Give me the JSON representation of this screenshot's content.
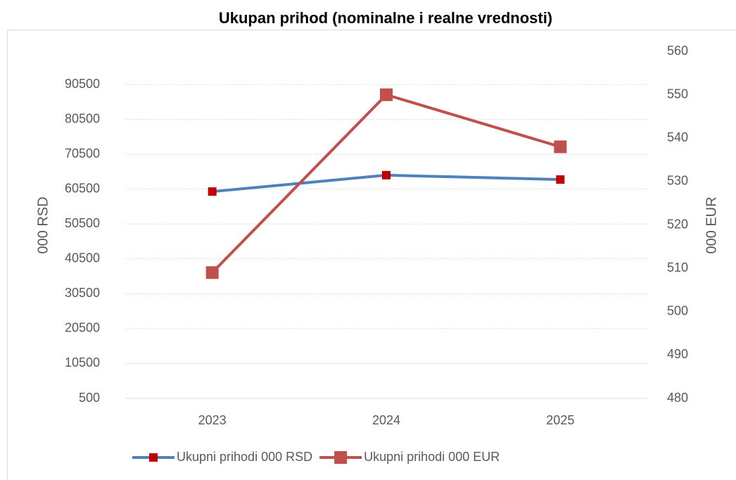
{
  "chart_data": {
    "type": "line",
    "title": "Ukupan prihod (nominalne i realne vrednosti)",
    "y_label": "000 RSD",
    "y2_label": "000 EUR",
    "categories": [
      "2023",
      "2024",
      "2025"
    ],
    "series": [
      {
        "name": "Ukupni prihodi 000 RSD",
        "color": "#4f81bd",
        "marker_color": "#c00000",
        "values": [
          59800,
          64500,
          63250
        ]
      },
      {
        "name": "Ukupni prihodi 000 EUR",
        "color": "#c0504d",
        "marker_color": "#c0504d",
        "axis": "y2",
        "values": [
          509,
          550,
          538
        ]
      }
    ],
    "ylim": [
      500,
      100000
    ],
    "yticks": [
      500,
      10500,
      20500,
      30500,
      40500,
      50500,
      60500,
      70500,
      80500,
      90500
    ],
    "y2lim": [
      480,
      560
    ],
    "y2ticks": [
      480,
      490,
      500,
      510,
      520,
      530,
      540,
      550,
      560
    ],
    "grid": true,
    "legend": "bottom"
  }
}
